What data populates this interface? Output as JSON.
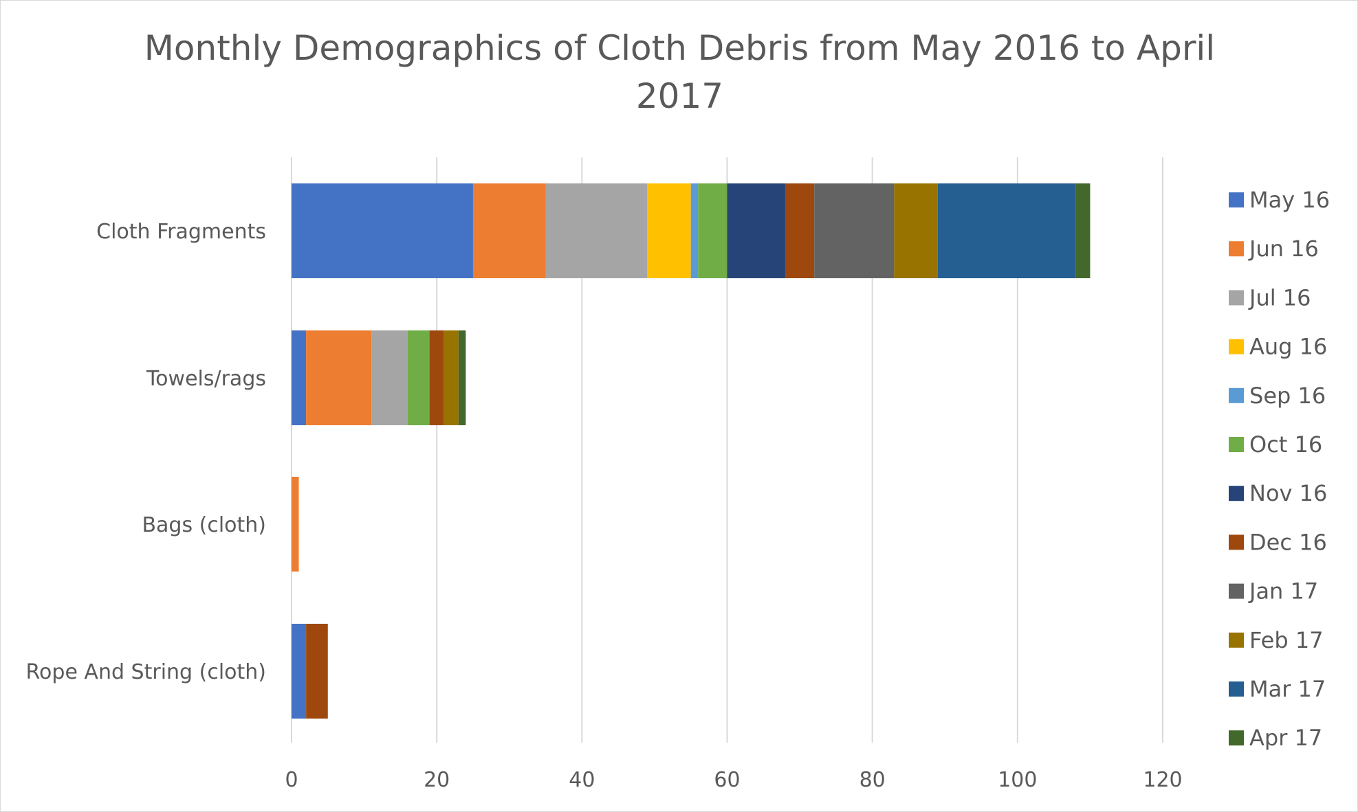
{
  "chart_data": {
    "type": "bar",
    "orientation": "horizontal",
    "stacked": true,
    "title": "Monthly Demographics of Cloth Debris from May 2016 to April 2017",
    "categories": [
      "Cloth Fragments",
      "Towels/rags",
      "Bags (cloth)",
      "Rope And String (cloth)"
    ],
    "xlim": [
      0,
      120
    ],
    "xticks": [
      0,
      20,
      40,
      60,
      80,
      100,
      120
    ],
    "grid": true,
    "legend_position": "right",
    "series": [
      {
        "name": "May 16",
        "color": "#4472C4",
        "values": [
          25,
          2,
          0,
          2
        ]
      },
      {
        "name": "Jun 16",
        "color": "#ED7D31",
        "values": [
          10,
          9,
          1,
          0
        ]
      },
      {
        "name": "Jul 16",
        "color": "#A5A5A5",
        "values": [
          14,
          5,
          0,
          0
        ]
      },
      {
        "name": "Aug 16",
        "color": "#FFC000",
        "values": [
          6,
          0,
          0,
          0
        ]
      },
      {
        "name": "Sep 16",
        "color": "#5B9BD5",
        "values": [
          1,
          0,
          0,
          0
        ]
      },
      {
        "name": "Oct 16",
        "color": "#70AD47",
        "values": [
          4,
          3,
          0,
          0
        ]
      },
      {
        "name": "Nov 16",
        "color": "#264478",
        "values": [
          8,
          0,
          0,
          0
        ]
      },
      {
        "name": "Dec 16",
        "color": "#9E480E",
        "values": [
          4,
          2,
          0,
          3
        ]
      },
      {
        "name": "Jan 17",
        "color": "#636363",
        "values": [
          11,
          0,
          0,
          0
        ]
      },
      {
        "name": "Feb 17",
        "color": "#997300",
        "values": [
          6,
          2,
          0,
          0
        ]
      },
      {
        "name": "Mar 17",
        "color": "#255E91",
        "values": [
          19,
          0,
          0,
          0
        ]
      },
      {
        "name": "Apr 17",
        "color": "#43682B",
        "values": [
          2,
          1,
          0,
          0
        ]
      }
    ]
  }
}
